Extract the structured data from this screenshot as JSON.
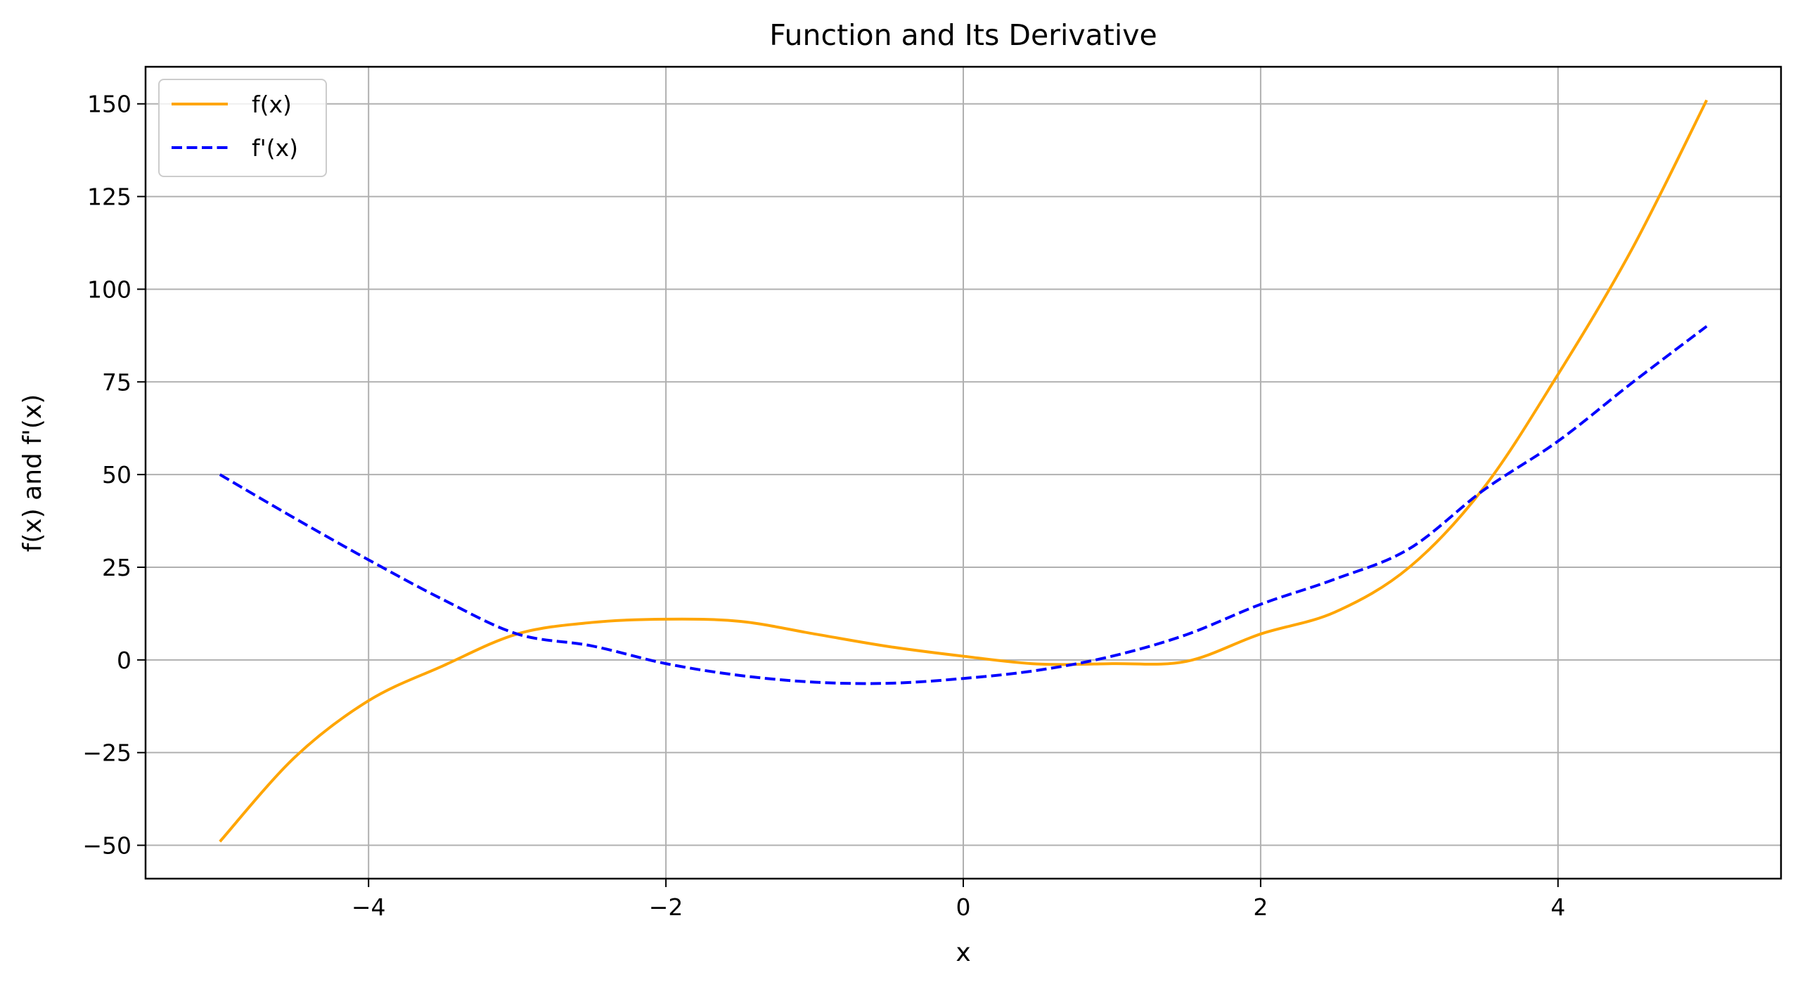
{
  "chart_data": {
    "type": "line",
    "title": "Function and Its Derivative",
    "xlabel": "x",
    "ylabel": "f(x) and f'(x)",
    "xlim": [
      -5.5,
      5.5
    ],
    "ylim": [
      -59,
      160
    ],
    "grid": true,
    "legend_position": "top-left",
    "x_ticks": [
      -4,
      -2,
      0,
      2,
      4
    ],
    "x_tick_labels": [
      "−4",
      "−2",
      "0",
      "2",
      "4"
    ],
    "y_ticks": [
      -50,
      -25,
      0,
      25,
      50,
      75,
      100,
      125,
      150
    ],
    "y_tick_labels": [
      "−50",
      "−25",
      "0",
      "25",
      "50",
      "75",
      "100",
      "125",
      "150"
    ],
    "series": [
      {
        "name": "f(x)",
        "color": "#FFA500",
        "style": "solid",
        "x": [
          -5,
          -4.5,
          -4,
          -3.5,
          -3,
          -2.5,
          -2,
          -1.5,
          -1,
          -0.5,
          0,
          0.5,
          1,
          1.5,
          2,
          2.5,
          3,
          3.5,
          4,
          4.5,
          5
        ],
        "y": [
          -49,
          -26.4,
          -11,
          -1.6,
          7,
          10.1,
          11,
          10.4,
          7,
          3.6,
          1,
          -1.1,
          -1,
          -0.4,
          7,
          12.9,
          25,
          46.4,
          77,
          111,
          151
        ]
      },
      {
        "name": "f'(x)",
        "color": "#0000FF",
        "style": "dashed",
        "x": [
          -5,
          -4.5,
          -4,
          -3.5,
          -3,
          -2.5,
          -2,
          -1.5,
          -1,
          -0.5,
          0,
          0.5,
          1,
          1.5,
          2,
          2.5,
          3,
          3.5,
          4,
          4.5,
          5
        ],
        "y": [
          50,
          38.3,
          27,
          16.3,
          7,
          3.8,
          -1,
          -4.2,
          -6,
          -6.3,
          -5,
          -2.8,
          1,
          6.8,
          15,
          21.8,
          30,
          45.8,
          59,
          74.8,
          90
        ]
      }
    ]
  }
}
